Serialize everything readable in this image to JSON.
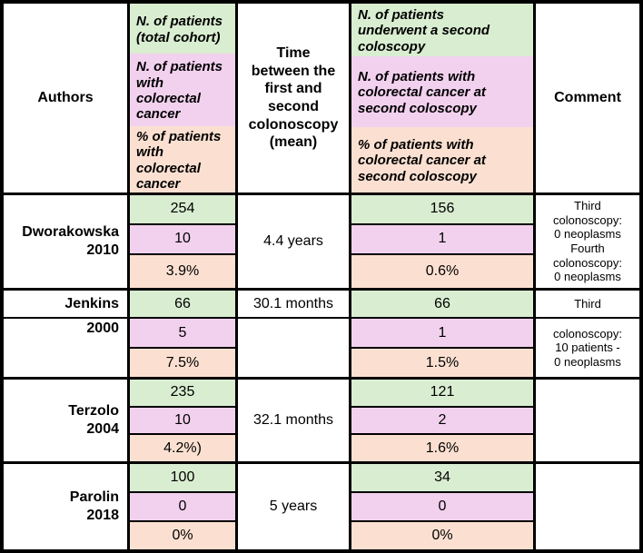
{
  "palette": {
    "green": "#d9edd1",
    "pink": "#f2d1ee",
    "peach": "#fbe0d1",
    "border": "#000000",
    "background": "#ffffff"
  },
  "header": {
    "authors": "Authors",
    "time": "Time\nbetween the\nfirst and\nsecond\ncolonoscopy\n(mean)",
    "comment": "Comment",
    "cohort": {
      "total": "N. of patients\n(total cohort)",
      "crc_count": "N. of patients\nwith\ncolorectal\ncancer",
      "crc_percent": "% of patients\nwith\ncolorectal\ncancer"
    },
    "second": {
      "total": "N. of patients\nunderwent a second\ncoloscopy",
      "crc_count": "N. of patients with\ncolorectal cancer at\nsecond coloscopy",
      "crc_percent": "% of patients with\ncolorectal cancer at\nsecond coloscopy"
    }
  },
  "rows": {
    "dworakowska": {
      "author": "Dworakowska\n2010",
      "cohort_total": "254",
      "cohort_crc_count": "10",
      "cohort_crc_percent": "3.9%",
      "time": "4.4 years",
      "second_total": "156",
      "second_crc_count": "1",
      "second_crc_percent": "0.6%",
      "comment": "Third\ncolonoscopy:\n0 neoplasms\nFourth\ncolonoscopy:\n0 neoplasms"
    },
    "jenkins": {
      "author": "Jenkins",
      "year": "2000",
      "cohort_total": "66",
      "cohort_crc_count": "5",
      "cohort_crc_percent": "7.5%",
      "time": "30.1 months",
      "second_total": "66",
      "second_crc_count": "1",
      "second_crc_percent": "1.5%",
      "comment_top": "Third",
      "comment_bottom": "colonoscopy:\n10 patients -\n0 neoplasms"
    },
    "terzolo": {
      "author": "Terzolo\n2004",
      "cohort_total": "235",
      "cohort_crc_count": "10",
      "cohort_crc_percent": "4.2%)",
      "time": "32.1 months",
      "second_total": "121",
      "second_crc_count": "2",
      "second_crc_percent": "1.6%",
      "comment": ""
    },
    "parolin": {
      "author": "Parolin\n2018",
      "cohort_total": "100",
      "cohort_crc_count": "0",
      "cohort_crc_percent": "0%",
      "time": "5 years",
      "second_total": "34",
      "second_crc_count": "0",
      "second_crc_percent": "0%",
      "comment": ""
    }
  }
}
